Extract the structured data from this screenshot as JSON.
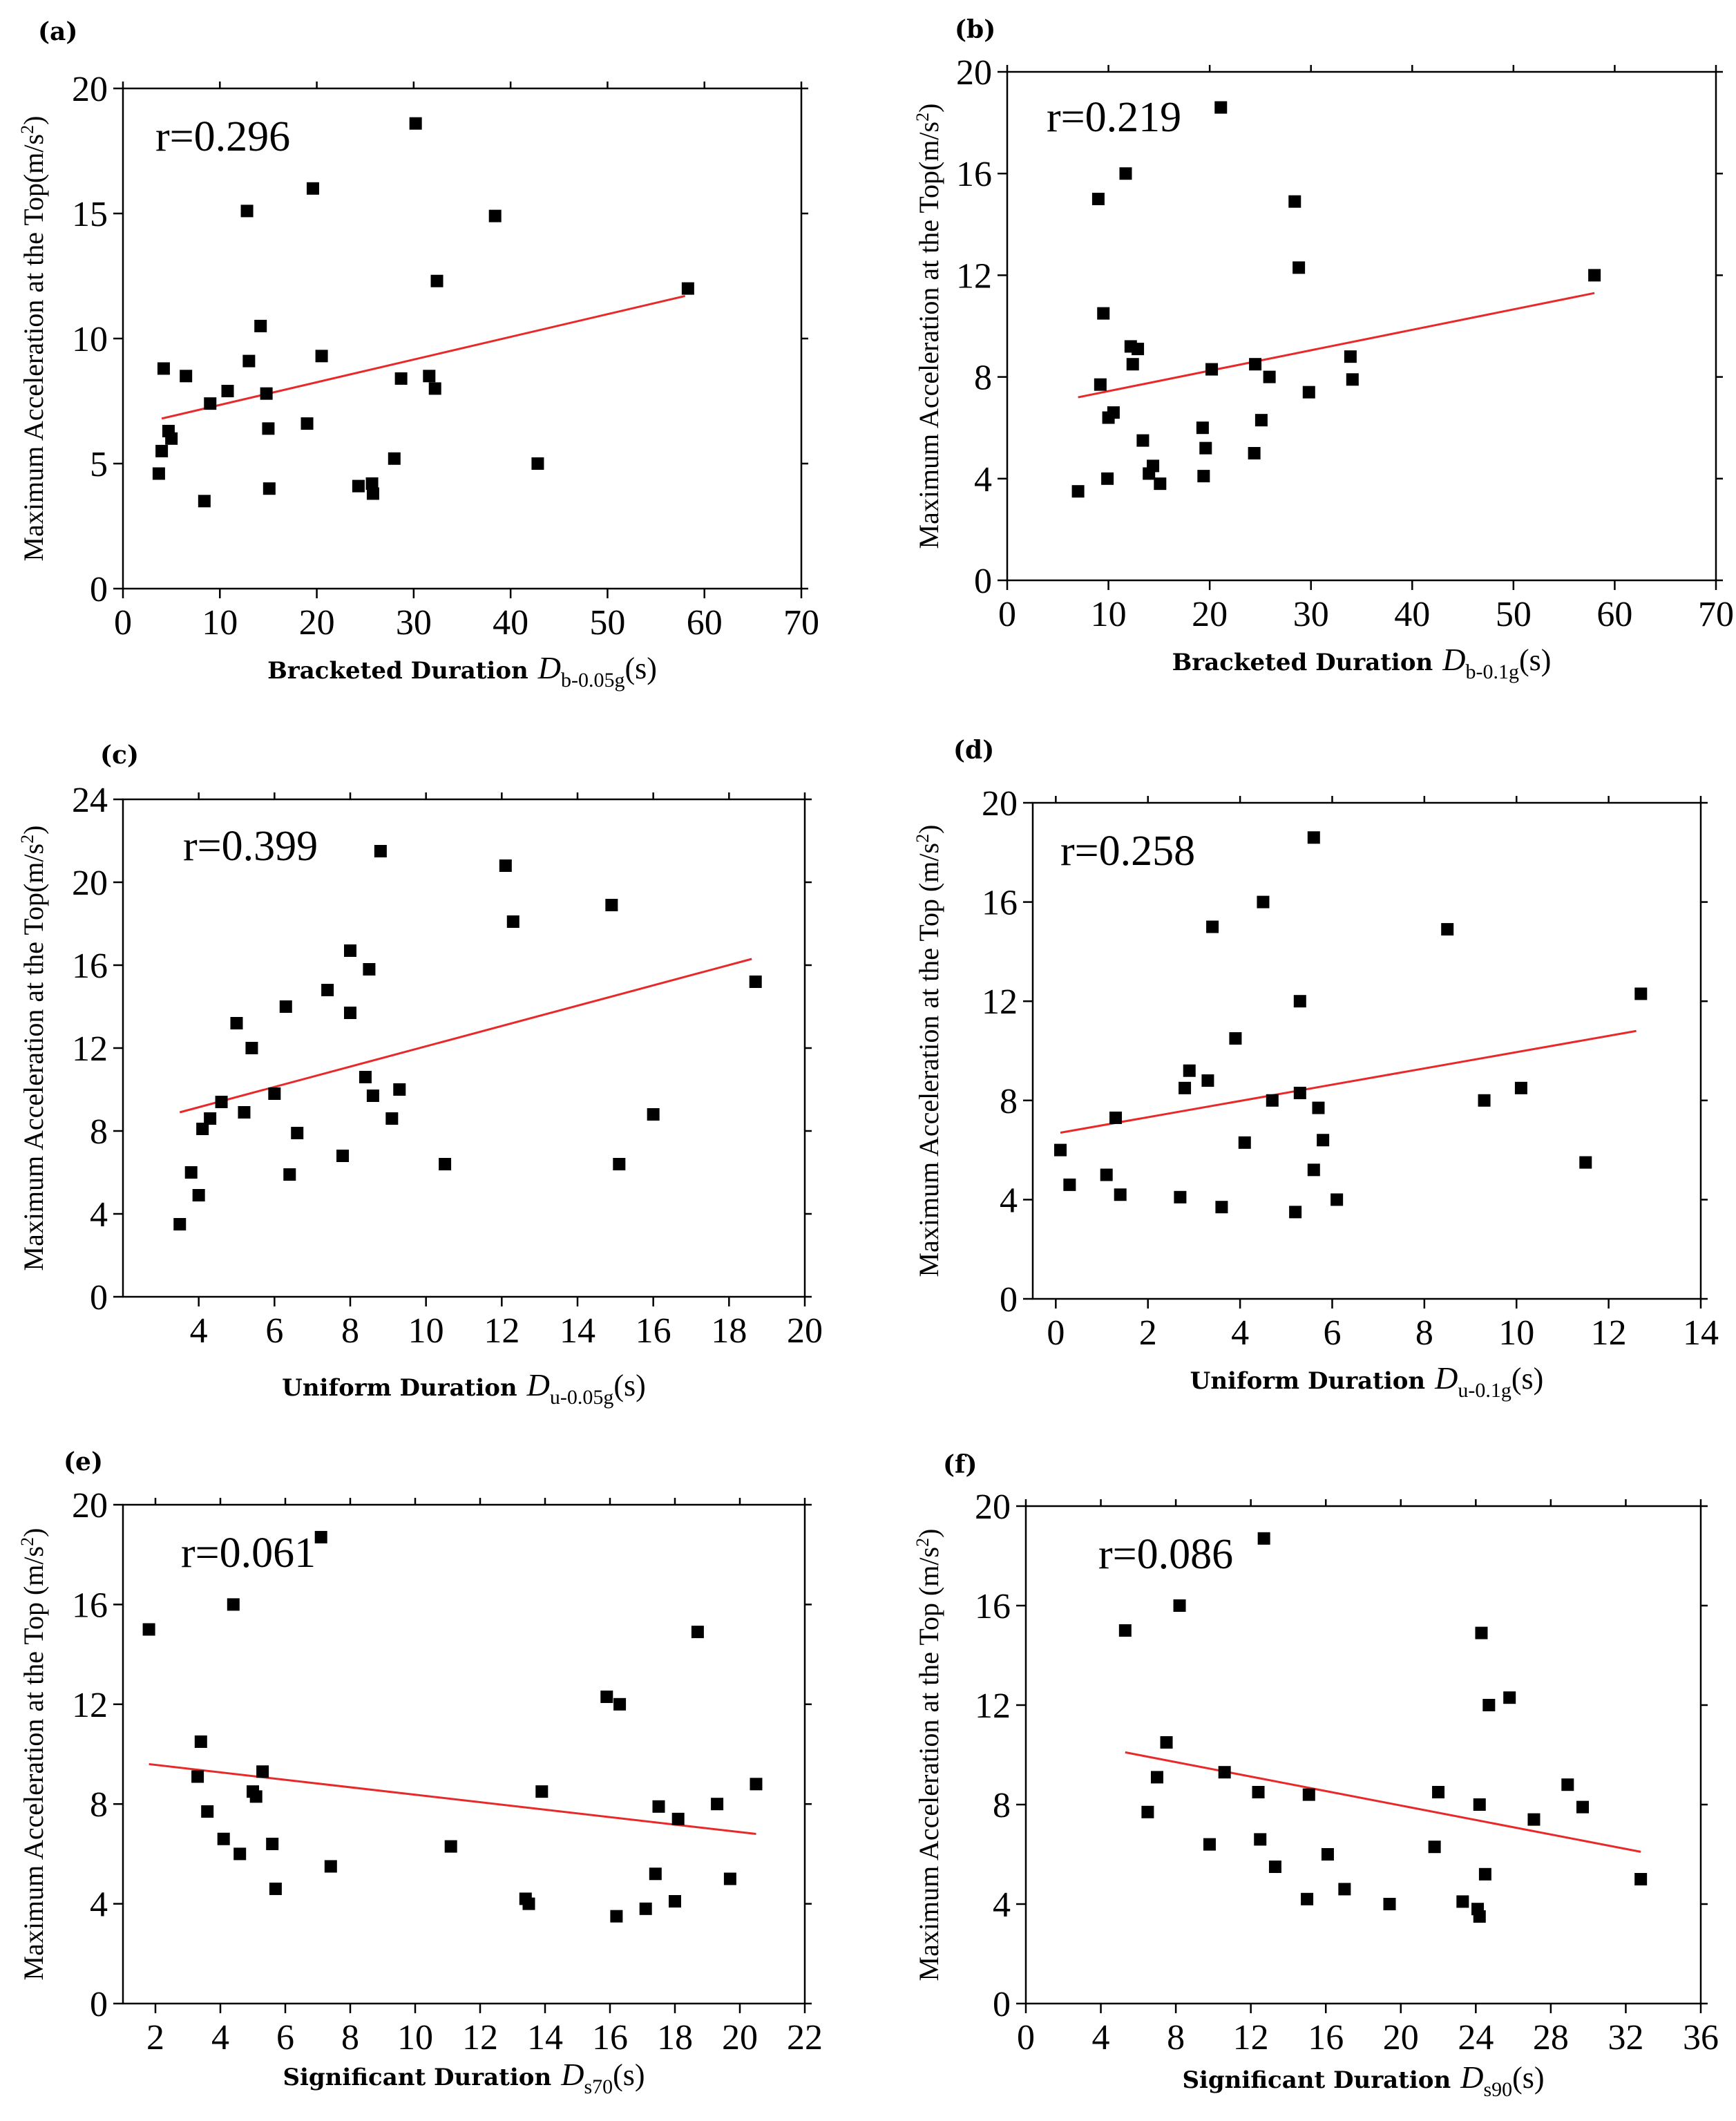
{
  "chart_data": [
    {
      "id": "a",
      "type": "scatter",
      "panel_label": "(a)",
      "annotation": "r=0.296",
      "xlabel": {
        "main": "Bracketed Duration",
        "symbol": "D",
        "subscript": "b-0.05g",
        "unit": "(s)"
      },
      "ylabel": {
        "text": "Maximum Acceleration at the Top(m/s",
        "sup": "2",
        "close": ")"
      },
      "xlim": [
        0,
        70
      ],
      "ylim": [
        0,
        20
      ],
      "xticks": [
        "0",
        "10",
        "20",
        "30",
        "40",
        "50",
        "60",
        "70"
      ],
      "yticks": [
        "0",
        "5",
        "10",
        "15",
        "20"
      ],
      "trend_color": "#e8292a",
      "trend_line": {
        "x": [
          4,
          58
        ],
        "y": [
          6.8,
          11.7
        ]
      },
      "points": [
        [
          3.7,
          4.6
        ],
        [
          4,
          5.5
        ],
        [
          4.2,
          8.8
        ],
        [
          4.7,
          6.3
        ],
        [
          5,
          6
        ],
        [
          6.5,
          8.5
        ],
        [
          8.4,
          3.5
        ],
        [
          9,
          7.4
        ],
        [
          10.8,
          7.9
        ],
        [
          12.8,
          15.1
        ],
        [
          13,
          9.1
        ],
        [
          14.2,
          10.5
        ],
        [
          14.8,
          7.8
        ],
        [
          15,
          6.4
        ],
        [
          15.1,
          4
        ],
        [
          19,
          6.6
        ],
        [
          19.6,
          16
        ],
        [
          20.5,
          9.3
        ],
        [
          24.3,
          4.1
        ],
        [
          25.7,
          4.2
        ],
        [
          25.8,
          3.8
        ],
        [
          28,
          5.2
        ],
        [
          28.7,
          8.4
        ],
        [
          30.2,
          18.6
        ],
        [
          31.6,
          8.5
        ],
        [
          32.2,
          8
        ],
        [
          32.4,
          12.3
        ],
        [
          38.4,
          14.9
        ],
        [
          42.8,
          5
        ],
        [
          58.3,
          12
        ]
      ]
    },
    {
      "id": "b",
      "type": "scatter",
      "panel_label": "(b)",
      "annotation": "r=0.219",
      "xlabel": {
        "main": "Bracketed Duration",
        "symbol": "D",
        "subscript": "b-0.1g",
        "unit": "(s)"
      },
      "ylabel": {
        "text": "Maximum Acceleration at the Top(m/s",
        "sup": "2",
        "close": ")"
      },
      "xlim": [
        0,
        70
      ],
      "ylim": [
        0,
        20
      ],
      "xticks": [
        "0",
        "10",
        "20",
        "30",
        "40",
        "50",
        "60",
        "70"
      ],
      "yticks": [
        "0",
        "4",
        "8",
        "12",
        "16",
        "20"
      ],
      "trend_color": "#e8292a",
      "trend_line": {
        "x": [
          7,
          58
        ],
        "y": [
          7.2,
          11.3
        ]
      },
      "points": [
        [
          7,
          3.5
        ],
        [
          9,
          15
        ],
        [
          9.2,
          7.7
        ],
        [
          9.5,
          10.5
        ],
        [
          9.9,
          4
        ],
        [
          10,
          6.4
        ],
        [
          10.5,
          6.6
        ],
        [
          11.7,
          16
        ],
        [
          12.2,
          9.2
        ],
        [
          12.4,
          8.5
        ],
        [
          12.9,
          9.1
        ],
        [
          13.4,
          5.5
        ],
        [
          14,
          4.2
        ],
        [
          14.4,
          4.5
        ],
        [
          15.1,
          3.8
        ],
        [
          19.3,
          6
        ],
        [
          19.4,
          4.1
        ],
        [
          19.6,
          5.2
        ],
        [
          20.2,
          8.3
        ],
        [
          21.1,
          18.6
        ],
        [
          24.4,
          5
        ],
        [
          24.5,
          8.5
        ],
        [
          25.1,
          6.3
        ],
        [
          25.9,
          8
        ],
        [
          28.4,
          14.9
        ],
        [
          28.8,
          12.3
        ],
        [
          29.8,
          7.4
        ],
        [
          33.9,
          8.8
        ],
        [
          34.1,
          7.9
        ],
        [
          58,
          12
        ]
      ]
    },
    {
      "id": "c",
      "type": "scatter",
      "panel_label": "(c)",
      "annotation": "r=0.399",
      "xlabel": {
        "main": "Uniform Duration",
        "symbol": "D",
        "subscript": "u-0.05g",
        "unit": "(s)"
      },
      "ylabel": {
        "text": "Maximum Acceleration at the Top(m/s",
        "sup": "2",
        "close": ")"
      },
      "xlim": [
        2,
        20
      ],
      "ylim": [
        0,
        24
      ],
      "xticks": [
        "4",
        "6",
        "8",
        "10",
        "12",
        "14",
        "16",
        "18",
        "20"
      ],
      "xtick_values": [
        4,
        6,
        8,
        10,
        12,
        14,
        16,
        18,
        20
      ],
      "yticks": [
        "0",
        "4",
        "8",
        "12",
        "16",
        "20",
        "24"
      ],
      "trend_color": "#e8292a",
      "trend_line": {
        "x": [
          3.5,
          18.6
        ],
        "y": [
          8.9,
          16.3
        ]
      },
      "points": [
        [
          3.5,
          3.5
        ],
        [
          3.8,
          6
        ],
        [
          4,
          4.9
        ],
        [
          4.1,
          8.1
        ],
        [
          4.3,
          8.6
        ],
        [
          4.6,
          9.4
        ],
        [
          5,
          13.2
        ],
        [
          5.2,
          8.9
        ],
        [
          5.4,
          12
        ],
        [
          6,
          9.8
        ],
        [
          6.3,
          14
        ],
        [
          6.4,
          5.9
        ],
        [
          6.6,
          7.9
        ],
        [
          7.4,
          14.8
        ],
        [
          7.8,
          6.8
        ],
        [
          8,
          16.7
        ],
        [
          8,
          13.7
        ],
        [
          8.4,
          10.6
        ],
        [
          8.5,
          15.8
        ],
        [
          8.6,
          9.7
        ],
        [
          8.8,
          21.5
        ],
        [
          9.1,
          8.6
        ],
        [
          9.3,
          10
        ],
        [
          10.5,
          6.4
        ],
        [
          12.1,
          20.8
        ],
        [
          12.3,
          18.1
        ],
        [
          14.9,
          18.9
        ],
        [
          15.1,
          6.4
        ],
        [
          16,
          8.8
        ],
        [
          18.7,
          15.2
        ]
      ]
    },
    {
      "id": "d",
      "type": "scatter",
      "panel_label": "(d)",
      "annotation": "r=0.258",
      "xlabel": {
        "main": "Uniform Duration",
        "symbol": "D",
        "subscript": "u-0.1g",
        "unit": "(s)"
      },
      "ylabel": {
        "text": "Maximum Acceleration at the Top (m/s",
        "sup": "2",
        "close": ")"
      },
      "xlim": [
        -0.5,
        14
      ],
      "ylim": [
        0,
        20
      ],
      "xticks": [
        "0",
        "2",
        "4",
        "6",
        "8",
        "10",
        "12",
        "14"
      ],
      "xtick_values": [
        0,
        2,
        4,
        6,
        8,
        10,
        12,
        14
      ],
      "yticks": [
        "0",
        "4",
        "8",
        "12",
        "16",
        "20"
      ],
      "trend_color": "#e8292a",
      "trend_line": {
        "x": [
          0.1,
          12.6
        ],
        "y": [
          6.7,
          10.8
        ]
      },
      "points": [
        [
          0.1,
          6
        ],
        [
          0.3,
          4.6
        ],
        [
          1.1,
          5
        ],
        [
          1.3,
          7.3
        ],
        [
          1.4,
          4.2
        ],
        [
          2.7,
          4.1
        ],
        [
          2.8,
          8.5
        ],
        [
          2.9,
          9.2
        ],
        [
          3.3,
          8.8
        ],
        [
          3.4,
          15
        ],
        [
          3.6,
          3.7
        ],
        [
          3.9,
          10.5
        ],
        [
          4.1,
          6.3
        ],
        [
          4.5,
          16
        ],
        [
          4.7,
          8
        ],
        [
          5.2,
          3.5
        ],
        [
          5.3,
          12
        ],
        [
          5.3,
          8.3
        ],
        [
          5.6,
          18.6
        ],
        [
          5.6,
          5.2
        ],
        [
          5.7,
          7.7
        ],
        [
          5.8,
          6.4
        ],
        [
          6.1,
          4
        ],
        [
          8.5,
          14.9
        ],
        [
          9.3,
          8
        ],
        [
          10.1,
          8.5
        ],
        [
          11.5,
          5.5
        ],
        [
          12.7,
          12.3
        ]
      ]
    },
    {
      "id": "e",
      "type": "scatter",
      "panel_label": "(e)",
      "annotation": "r=0.061",
      "xlabel": {
        "main": "Significant Duration",
        "symbol": "D",
        "subscript": "s70",
        "unit": "(s)"
      },
      "ylabel": {
        "text": "Maximum Acceleration at the Top (m/s",
        "sup": "2",
        "close": ")"
      },
      "xlim": [
        1,
        22
      ],
      "ylim": [
        0,
        20
      ],
      "xticks": [
        "2",
        "4",
        "6",
        "8",
        "10",
        "12",
        "14",
        "16",
        "18",
        "20",
        "22"
      ],
      "xtick_values": [
        2,
        4,
        6,
        8,
        10,
        12,
        14,
        16,
        18,
        20,
        22
      ],
      "yticks": [
        "0",
        "4",
        "8",
        "12",
        "16",
        "20"
      ],
      "trend_color": "#e8292a",
      "trend_line": {
        "x": [
          1.8,
          20.5
        ],
        "y": [
          9.6,
          6.8
        ]
      },
      "points": [
        [
          1.8,
          15
        ],
        [
          3.3,
          9.1
        ],
        [
          3.4,
          10.5
        ],
        [
          3.6,
          7.7
        ],
        [
          4.1,
          6.6
        ],
        [
          4.4,
          16
        ],
        [
          4.6,
          6
        ],
        [
          5,
          8.5
        ],
        [
          5.1,
          8.3
        ],
        [
          5.3,
          9.3
        ],
        [
          5.6,
          6.4
        ],
        [
          5.7,
          4.6
        ],
        [
          7.1,
          18.7
        ],
        [
          7.4,
          5.5
        ],
        [
          11.1,
          6.3
        ],
        [
          13.4,
          4.2
        ],
        [
          13.5,
          4
        ],
        [
          13.9,
          8.5
        ],
        [
          15.9,
          12.3
        ],
        [
          16.2,
          3.5
        ],
        [
          16.3,
          12
        ],
        [
          17.1,
          3.8
        ],
        [
          17.4,
          5.2
        ],
        [
          17.5,
          7.9
        ],
        [
          18,
          4.1
        ],
        [
          18.1,
          7.4
        ],
        [
          18.7,
          14.9
        ],
        [
          19.3,
          8
        ],
        [
          19.7,
          5
        ],
        [
          20.5,
          8.8
        ]
      ]
    },
    {
      "id": "f",
      "type": "scatter",
      "panel_label": "(f)",
      "annotation": "r=0.086",
      "xlabel": {
        "main": "Significant Duration",
        "symbol": "D",
        "subscript": "s90",
        "unit": "(s)"
      },
      "ylabel": {
        "text": "Maximum Acceleration at the Top (m/s",
        "sup": "2",
        "close": ")"
      },
      "xlim": [
        0,
        36
      ],
      "ylim": [
        0,
        20
      ],
      "xticks": [
        "0",
        "4",
        "8",
        "12",
        "16",
        "20",
        "24",
        "28",
        "32",
        "36"
      ],
      "yticks": [
        "0",
        "4",
        "8",
        "12",
        "16",
        "20"
      ],
      "trend_color": "#e8292a",
      "trend_line": {
        "x": [
          5.3,
          32.8
        ],
        "y": [
          10.1,
          6.1
        ]
      },
      "points": [
        [
          5.3,
          15
        ],
        [
          6.5,
          7.7
        ],
        [
          7,
          9.1
        ],
        [
          7.5,
          10.5
        ],
        [
          8.2,
          16
        ],
        [
          9.8,
          6.4
        ],
        [
          10.6,
          9.3
        ],
        [
          12.4,
          8.5
        ],
        [
          12.5,
          6.6
        ],
        [
          12.7,
          18.7
        ],
        [
          13.3,
          5.5
        ],
        [
          15,
          4.2
        ],
        [
          15.1,
          8.4
        ],
        [
          16.1,
          6
        ],
        [
          17,
          4.6
        ],
        [
          19.4,
          4
        ],
        [
          21.8,
          6.3
        ],
        [
          22,
          8.5
        ],
        [
          23.3,
          4.1
        ],
        [
          24.1,
          3.8
        ],
        [
          24.2,
          3.5
        ],
        [
          24.2,
          8
        ],
        [
          24.3,
          14.9
        ],
        [
          24.5,
          5.2
        ],
        [
          24.7,
          12
        ],
        [
          25.8,
          12.3
        ],
        [
          27.1,
          7.4
        ],
        [
          28.9,
          8.8
        ],
        [
          29.7,
          7.9
        ],
        [
          32.8,
          5
        ]
      ]
    }
  ]
}
